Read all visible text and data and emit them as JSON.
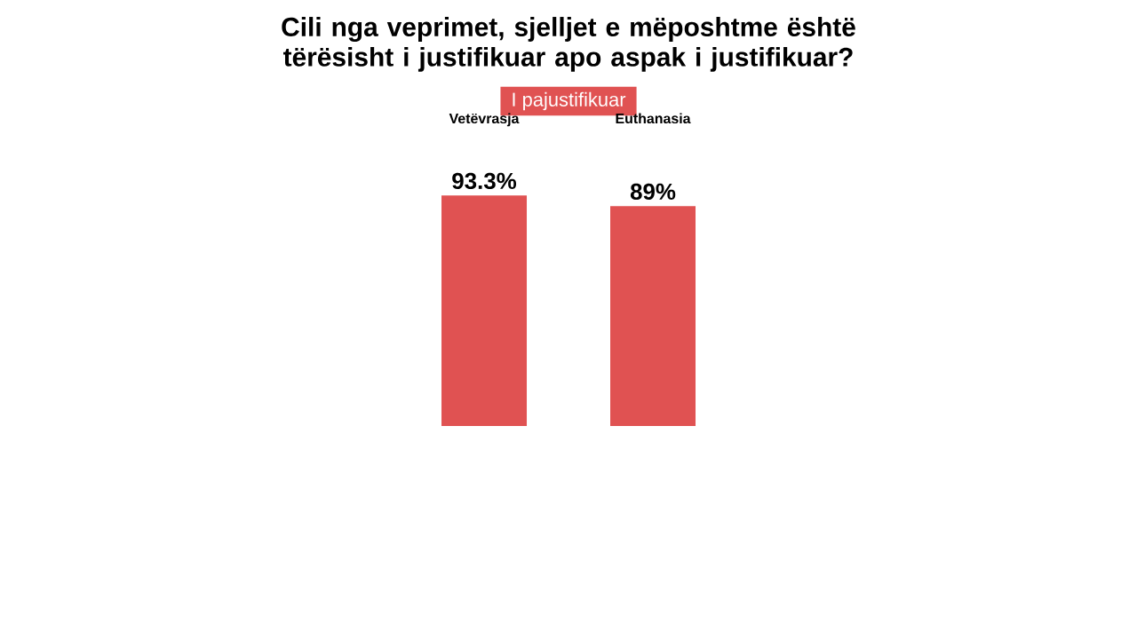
{
  "chart_data": {
    "type": "bar",
    "title": "Cili nga veprimet, sjelljet e mëposhtme është tërësisht i justifikuar apo aspak i justifikuar?",
    "categories": [
      "Vetëvrasja",
      "Euthanasia"
    ],
    "series": [
      {
        "name": "I pajustifikuar",
        "color": "#e05252",
        "values": [
          93.3,
          89
        ],
        "value_labels": [
          "93.3%",
          "89%"
        ]
      }
    ],
    "legend": "top"
  }
}
